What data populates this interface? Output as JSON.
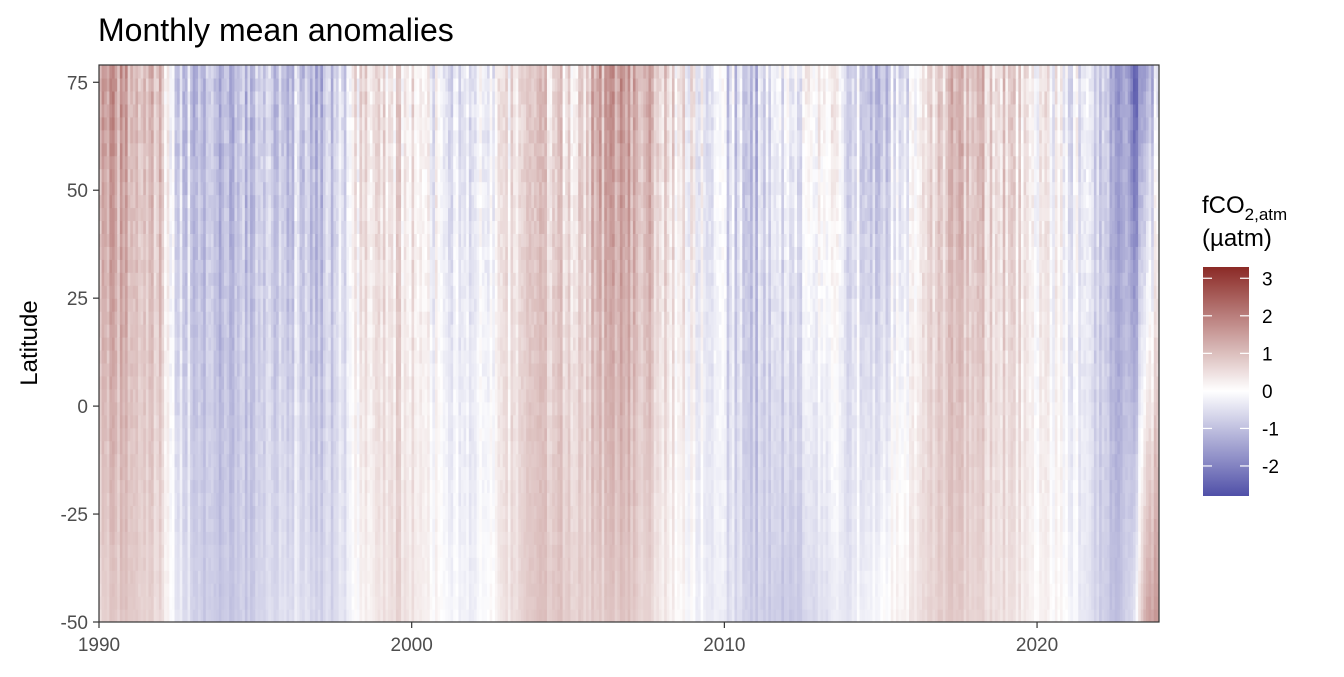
{
  "chart_data": {
    "type": "heatmap",
    "title": "Monthly mean anomalies",
    "xlabel": "",
    "ylabel": "Latitude",
    "xlim": [
      1990,
      2023.9
    ],
    "ylim": [
      -50,
      79
    ],
    "x_ticks": [
      1990,
      2000,
      2010,
      2020
    ],
    "x_tick_labels": [
      "1990",
      "2000",
      "2010",
      "2020"
    ],
    "y_ticks": [
      -50,
      -25,
      0,
      25,
      50,
      75
    ],
    "y_tick_labels": [
      "-50",
      "-25",
      "0",
      "25",
      "50",
      "75"
    ],
    "grid": false,
    "legend": {
      "placement": "right",
      "title_main": "fCO",
      "title_sub": "2,atm",
      "title_unit": "(µatm)",
      "range": [
        -2.8,
        3.3
      ],
      "ticks": [
        3,
        2,
        1,
        0,
        -1,
        -2
      ],
      "tick_labels": [
        "3",
        "2",
        "1",
        "0",
        "-1",
        "-2"
      ],
      "colors": {
        "low": "#5050a8",
        "mid": "#ffffff",
        "high": "#8b2a26"
      }
    },
    "time_step": "monthly",
    "latitude_step": 1,
    "anomaly_profile": {
      "time": [
        1990.0,
        1991.0,
        1992.0,
        1992.5,
        1993.5,
        1995.0,
        1996.0,
        1997.5,
        1998.5,
        1999.5,
        2001.0,
        2002.0,
        2003.0,
        2004.0,
        2005.0,
        2006.0,
        2007.0,
        2008.0,
        2009.0,
        2010.0,
        2011.0,
        2012.0,
        2013.0,
        2014.0,
        2015.0,
        2016.0,
        2017.0,
        2018.0,
        2019.0,
        2020.0,
        2021.0,
        2021.8,
        2022.5,
        2023.0,
        2023.5,
        2023.9
      ],
      "south_mean": [
        0.6,
        0.9,
        0.5,
        -0.3,
        -0.9,
        -0.8,
        -0.4,
        -0.7,
        0.2,
        0.6,
        0.0,
        -0.3,
        0.4,
        0.9,
        0.8,
        0.7,
        0.9,
        0.4,
        -0.1,
        -0.4,
        -0.8,
        -0.9,
        -0.6,
        -0.3,
        0.0,
        0.3,
        0.8,
        0.7,
        0.5,
        0.2,
        0.0,
        -0.6,
        -1.0,
        -0.8,
        1.3,
        1.6
      ],
      "north_mean": [
        1.4,
        1.3,
        0.8,
        -0.6,
        -1.2,
        -1.0,
        -0.8,
        -1.1,
        0.6,
        0.4,
        -0.2,
        -0.6,
        0.3,
        0.8,
        0.4,
        1.2,
        1.5,
        0.9,
        0.1,
        -0.5,
        -0.9,
        -0.3,
        0.1,
        -0.3,
        -0.9,
        -0.4,
        0.8,
        1.1,
        0.7,
        0.3,
        -0.2,
        -0.5,
        -1.4,
        -2.2,
        -1.8,
        -0.5
      ]
    }
  }
}
